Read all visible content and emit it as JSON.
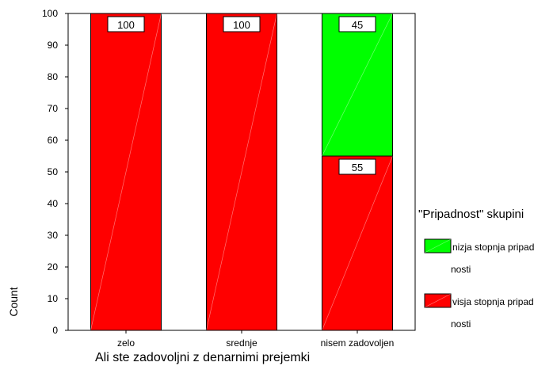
{
  "chart_data": {
    "type": "bar",
    "stacked": true,
    "categories": [
      "zelo",
      "srednje",
      "nisem zadovoljen"
    ],
    "series": [
      {
        "name_lines": [
          "visja stopnja pripad",
          "nosti"
        ],
        "color": "#ff0000",
        "values": [
          100,
          100,
          55
        ]
      },
      {
        "name_lines": [
          "nizja stopnja pripad",
          "nosti"
        ],
        "color": "#00ff00",
        "values": [
          0,
          0,
          45
        ]
      }
    ],
    "data_labels": [
      [
        "100",
        "100",
        "55"
      ],
      [
        "",
        "",
        "45"
      ]
    ],
    "xlabel": "Ali ste zadovoljni z denarnimi prejemki",
    "ylabel": "Count",
    "ylim": [
      0,
      100
    ],
    "yticks": [
      0,
      10,
      20,
      30,
      40,
      50,
      60,
      70,
      80,
      90,
      100
    ],
    "grid": false,
    "legend": {
      "title": "\"Pripadnost\" skupini",
      "placement": "right"
    }
  }
}
